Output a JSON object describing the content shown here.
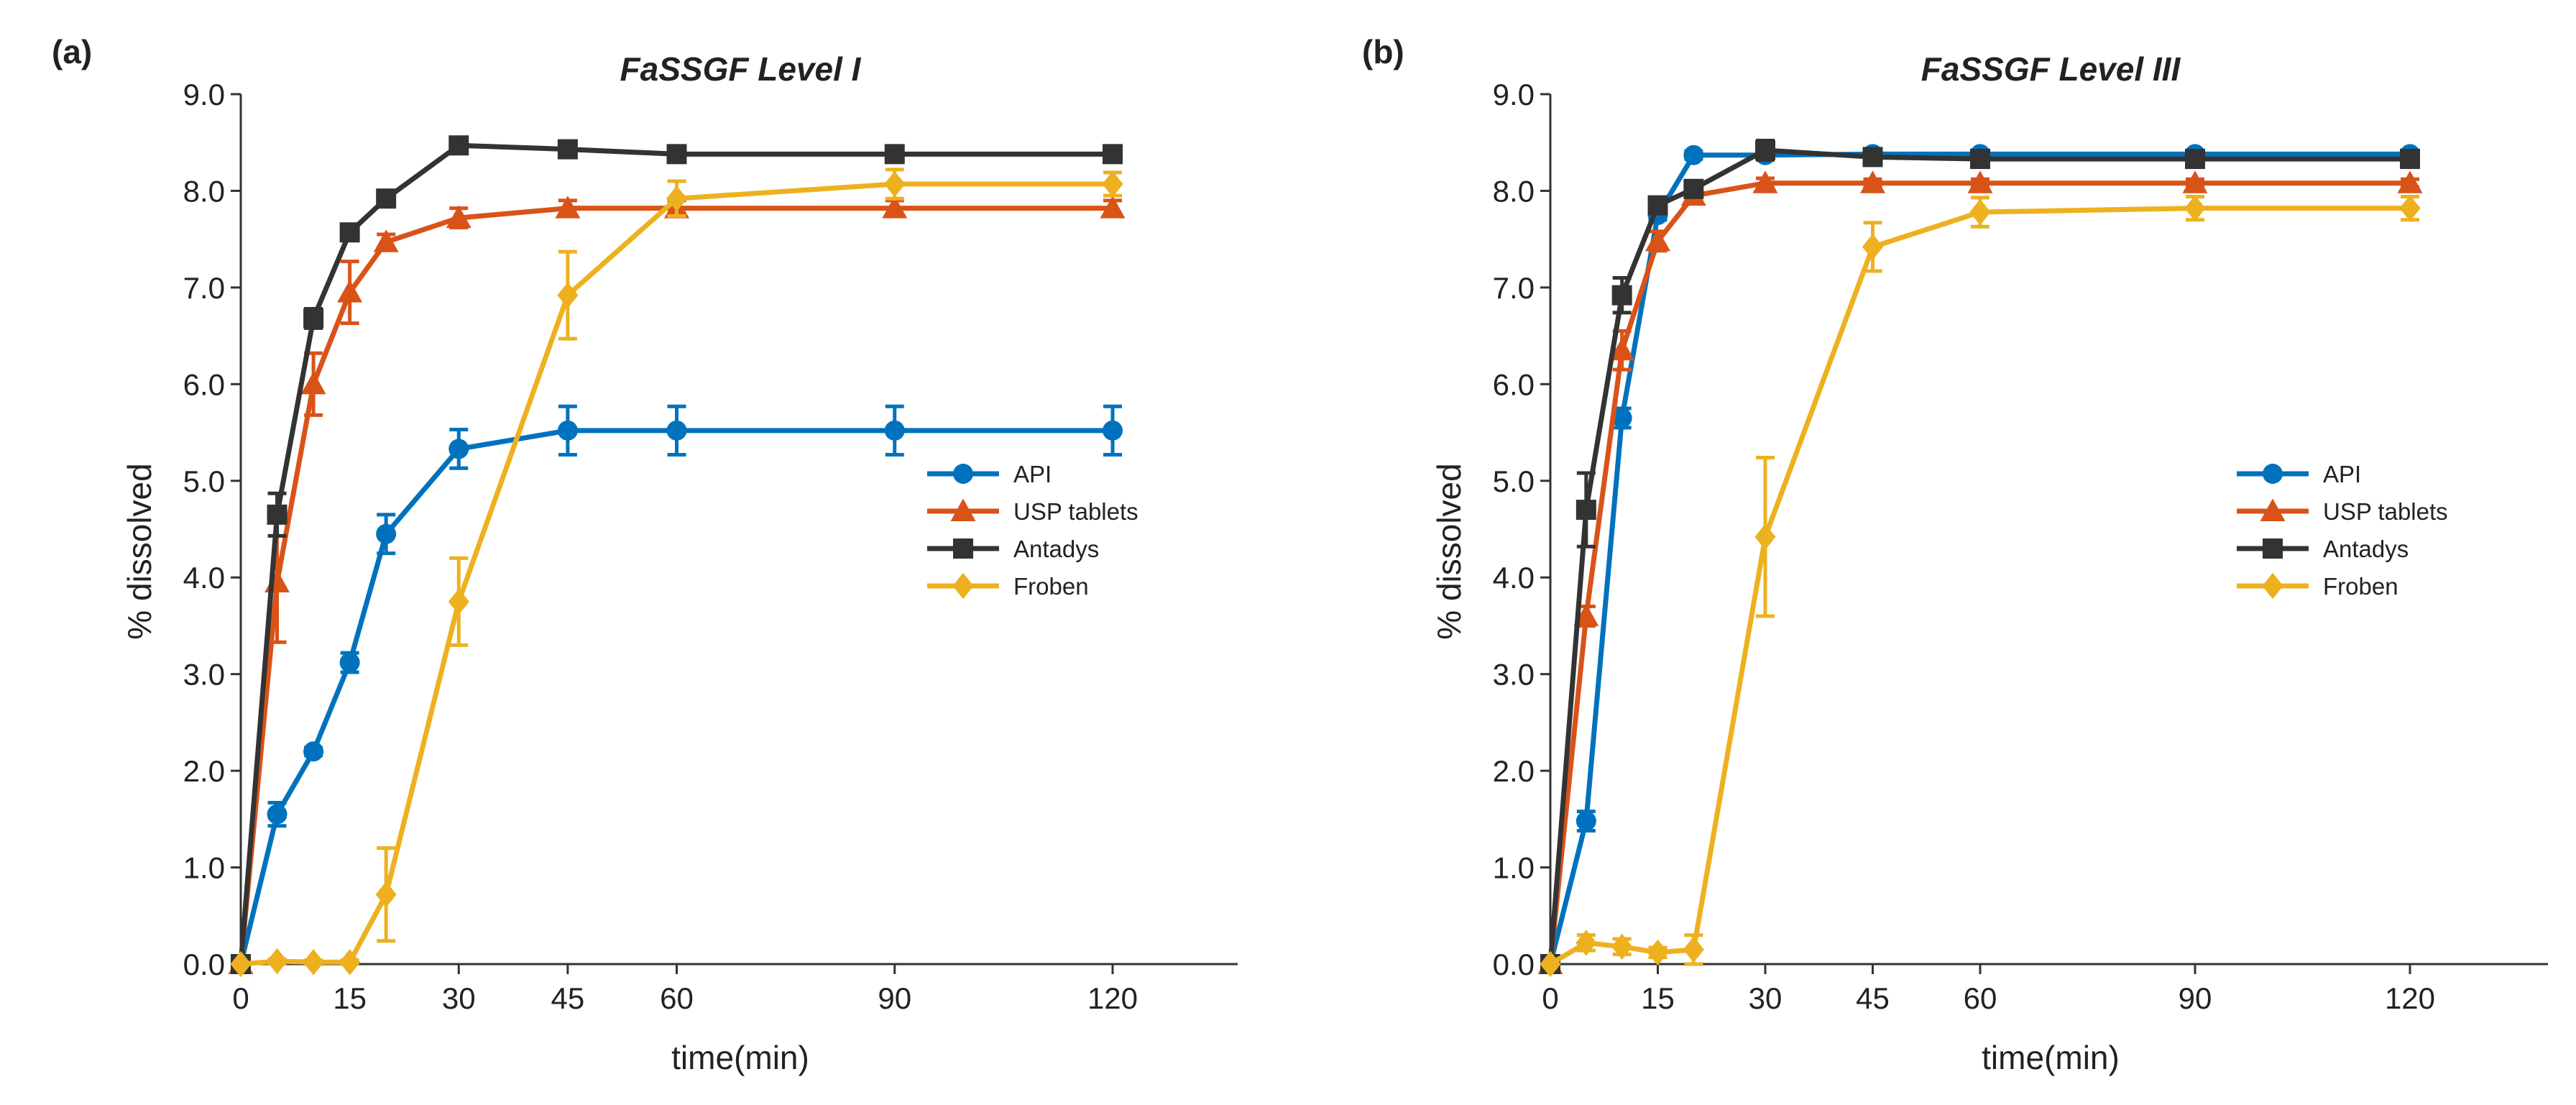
{
  "chart_data": [
    {
      "type": "line",
      "panel_label": "(a)",
      "title": "FaSSGF Level I",
      "xlabel": "time(min)",
      "ylabel": "% dissolved",
      "xlim": [
        0,
        140
      ],
      "ylim": [
        0,
        9
      ],
      "xticks": [
        0,
        15,
        30,
        45,
        60,
        90,
        120
      ],
      "xtick_labels": [
        "0",
        "15",
        "30",
        "45",
        "60",
        "90",
        "120"
      ],
      "yticks": [
        0,
        1,
        2,
        3,
        4,
        5,
        6,
        7,
        8,
        9
      ],
      "ytick_labels": [
        "0.0",
        "1.0",
        "2.0",
        "3.0",
        "4.0",
        "5.0",
        "6.0",
        "7.0",
        "8.0",
        "9.0"
      ],
      "legend_position": "center-right",
      "grid": false,
      "x": [
        0,
        5,
        10,
        15,
        20,
        30,
        45,
        60,
        90,
        120
      ],
      "series": [
        {
          "name": "API",
          "color": "#0072BD",
          "marker": "circle",
          "values": [
            0.0,
            1.55,
            2.2,
            3.12,
            4.45,
            5.33,
            5.52,
            5.52,
            5.52,
            5.52
          ],
          "errors": [
            0.0,
            0.12,
            0.04,
            0.1,
            0.2,
            0.2,
            0.25,
            0.25,
            0.25,
            0.25
          ]
        },
        {
          "name": "USP tablets",
          "color": "#D95319",
          "marker": "triangle",
          "values": [
            0.0,
            3.95,
            6.0,
            6.95,
            7.47,
            7.72,
            7.82,
            7.82,
            7.82,
            7.82
          ],
          "errors": [
            0.0,
            0.62,
            0.32,
            0.32,
            0.08,
            0.1,
            0.08,
            0.08,
            0.08,
            0.08
          ]
        },
        {
          "name": "Antadys",
          "color": "#333333",
          "marker": "square",
          "values": [
            0.0,
            4.65,
            6.68,
            7.57,
            7.92,
            8.47,
            8.43,
            8.38,
            8.38,
            8.38
          ],
          "errors": [
            0.0,
            0.22,
            0.1,
            0.05,
            0.05,
            0.05,
            0.04,
            0.04,
            0.04,
            0.04
          ]
        },
        {
          "name": "Froben",
          "color": "#EDB120",
          "marker": "diamond",
          "values": [
            0.0,
            0.03,
            0.02,
            0.02,
            0.72,
            3.75,
            6.92,
            7.92,
            8.07,
            8.07
          ],
          "errors": [
            0.0,
            0.02,
            0.02,
            0.02,
            0.48,
            0.45,
            0.45,
            0.18,
            0.15,
            0.12
          ]
        }
      ]
    },
    {
      "type": "line",
      "panel_label": "(b)",
      "title": "FaSSGF Level III",
      "xlabel": "time(min)",
      "ylabel": "% dissolved",
      "xlim": [
        0,
        140
      ],
      "ylim": [
        0,
        9
      ],
      "xticks": [
        0,
        15,
        30,
        45,
        60,
        90,
        120
      ],
      "xtick_labels": [
        "0",
        "15",
        "30",
        "45",
        "60",
        "90",
        "120"
      ],
      "yticks": [
        0,
        1,
        2,
        3,
        4,
        5,
        6,
        7,
        8,
        9
      ],
      "ytick_labels": [
        "0.0",
        "1.0",
        "2.0",
        "3.0",
        "4.0",
        "5.0",
        "6.0",
        "7.0",
        "8.0",
        "9.0"
      ],
      "legend_position": "center-right",
      "grid": false,
      "x": [
        0,
        5,
        10,
        15,
        20,
        30,
        45,
        60,
        90,
        120
      ],
      "series": [
        {
          "name": "API",
          "color": "#0072BD",
          "marker": "circle",
          "values": [
            0.0,
            1.48,
            5.65,
            7.75,
            8.37,
            8.37,
            8.38,
            8.38,
            8.38,
            8.38
          ],
          "errors": [
            0.0,
            0.1,
            0.1,
            0.05,
            0.04,
            0.04,
            0.04,
            0.04,
            0.04,
            0.04
          ]
        },
        {
          "name": "USP tablets",
          "color": "#D95319",
          "marker": "triangle",
          "values": [
            0.0,
            3.6,
            6.35,
            7.48,
            7.95,
            8.08,
            8.08,
            8.08,
            8.08,
            8.08
          ],
          "errors": [
            0.0,
            0.1,
            0.2,
            0.1,
            0.05,
            0.05,
            0.04,
            0.04,
            0.04,
            0.04
          ]
        },
        {
          "name": "Antadys",
          "color": "#333333",
          "marker": "square",
          "values": [
            0.0,
            4.7,
            6.92,
            7.85,
            8.02,
            8.42,
            8.35,
            8.33,
            8.33,
            8.33
          ],
          "errors": [
            0.0,
            0.38,
            0.18,
            0.08,
            0.08,
            0.1,
            0.04,
            0.04,
            0.04,
            0.04
          ]
        },
        {
          "name": "Froben",
          "color": "#EDB120",
          "marker": "diamond",
          "values": [
            0.0,
            0.22,
            0.18,
            0.12,
            0.15,
            4.42,
            7.42,
            7.78,
            7.82,
            7.82
          ],
          "errors": [
            0.0,
            0.08,
            0.08,
            0.05,
            0.15,
            0.82,
            0.25,
            0.15,
            0.12,
            0.12
          ]
        }
      ]
    }
  ]
}
